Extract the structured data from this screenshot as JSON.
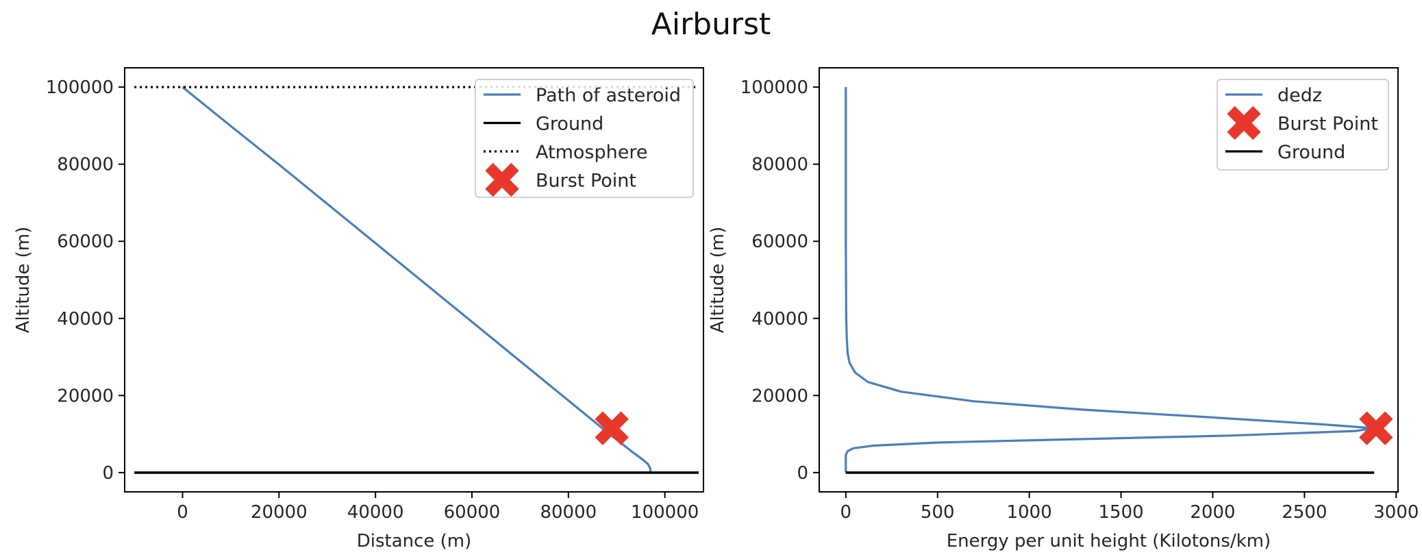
{
  "figure": {
    "suptitle": "Airburst"
  },
  "colors": {
    "path": "#4a7fbb",
    "burst": "#e8382b",
    "ground": "#000000",
    "atmosphere": "#000000"
  },
  "chart_data": [
    {
      "type": "line",
      "xlabel": "Distance (m)",
      "ylabel": "Altitude (m)",
      "xlim": [
        -12000,
        108000
      ],
      "ylim": [
        -5000,
        105000
      ],
      "xticks": [
        0,
        20000,
        40000,
        60000,
        80000,
        100000
      ],
      "xtick_labels": [
        "0",
        "20000",
        "40000",
        "60000",
        "80000",
        "100000"
      ],
      "yticks": [
        0,
        20000,
        40000,
        60000,
        80000,
        100000
      ],
      "ytick_labels": [
        "0",
        "20000",
        "40000",
        "60000",
        "80000",
        "100000"
      ],
      "legend_position": "top-right",
      "series": [
        {
          "name": "Path of asteroid",
          "style": "line",
          "x": [
            0,
            10000,
            20000,
            30000,
            40000,
            50000,
            60000,
            70000,
            80000,
            88000,
            93000,
            95500,
            96500,
            97000,
            97000
          ],
          "y": [
            100000,
            89900,
            79900,
            69700,
            59500,
            49300,
            39100,
            28900,
            18700,
            10500,
            5600,
            3300,
            2200,
            1000,
            0
          ]
        },
        {
          "name": "Ground",
          "style": "solid",
          "x": [
            -10000,
            107000
          ],
          "y": [
            0,
            0
          ]
        },
        {
          "name": "Atmosphere",
          "style": "dotted",
          "x": [
            -10000,
            107000
          ],
          "y": [
            100000,
            100000
          ]
        },
        {
          "name": "Burst Point",
          "style": "marker-x",
          "x": [
            89000
          ],
          "y": [
            11500
          ]
        }
      ]
    },
    {
      "type": "line",
      "xlabel": "Energy per unit height (Kilotons/km)",
      "ylabel": "Altitude (m)",
      "xlim": [
        -145,
        3010
      ],
      "ylim": [
        -5000,
        105000
      ],
      "xticks": [
        0,
        500,
        1000,
        1500,
        2000,
        2500,
        3000
      ],
      "xtick_labels": [
        "0",
        "500",
        "1000",
        "1500",
        "2000",
        "2500",
        "3000"
      ],
      "yticks": [
        0,
        20000,
        40000,
        60000,
        80000,
        100000
      ],
      "ytick_labels": [
        "0",
        "20000",
        "40000",
        "60000",
        "80000",
        "100000"
      ],
      "legend_position": "top-right",
      "series": [
        {
          "name": "dedz",
          "style": "line",
          "x": [
            0,
            0,
            2,
            5,
            10,
            20,
            50,
            120,
            300,
            700,
            1300,
            2000,
            2600,
            2880,
            2780,
            2100,
            1200,
            500,
            150,
            40,
            8,
            0,
            0
          ],
          "y": [
            100000,
            60000,
            40000,
            35000,
            31000,
            28500,
            26000,
            23500,
            21000,
            18500,
            16300,
            14300,
            12500,
            11500,
            10800,
            9600,
            8600,
            7800,
            7000,
            6300,
            5500,
            4500,
            0
          ]
        },
        {
          "name": "Burst Point",
          "style": "marker-x",
          "x": [
            2890
          ],
          "y": [
            11500
          ]
        },
        {
          "name": "Ground",
          "style": "solid",
          "x": [
            0,
            2880
          ],
          "y": [
            0,
            0
          ]
        }
      ]
    }
  ]
}
